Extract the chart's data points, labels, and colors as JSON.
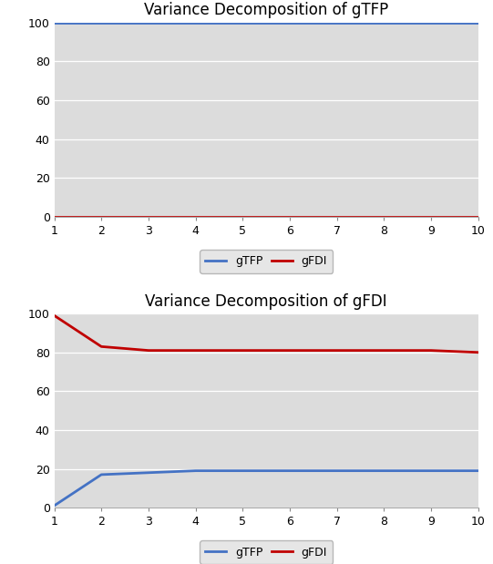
{
  "title1": "Variance Decomposition of gTFP",
  "title2": "Variance Decomposition of gFDI",
  "x": [
    1,
    2,
    3,
    4,
    5,
    6,
    7,
    8,
    9,
    10
  ],
  "gTFP_gtfp": [
    100,
    100,
    100,
    100,
    100,
    100,
    100,
    100,
    100,
    100
  ],
  "gFDI_gtfp": [
    0,
    0,
    0,
    0,
    0,
    0,
    0,
    0,
    0,
    0
  ],
  "gTFP_gfdi": [
    1,
    17,
    18,
    19,
    19,
    19,
    19,
    19,
    19,
    19
  ],
  "gFDI_gfdi": [
    99,
    83,
    81,
    81,
    81,
    81,
    81,
    81,
    81,
    80
  ],
  "blue_color": "#4472C4",
  "red_color": "#C00000",
  "bg_color": "#DCDCDC",
  "fig_bg": "#FFFFFF",
  "legend_bg": "#E0E0E0",
  "legend_edge": "#AAAAAA",
  "ylim": [
    0,
    100
  ],
  "xlim": [
    1,
    10
  ],
  "xticks": [
    1,
    2,
    3,
    4,
    5,
    6,
    7,
    8,
    9,
    10
  ],
  "yticks": [
    0,
    20,
    40,
    60,
    80,
    100
  ],
  "line_width": 2.0,
  "title_fontsize": 12,
  "tick_fontsize": 9,
  "legend_fontsize": 9,
  "figsize": [
    5.41,
    6.19
  ],
  "dpi": 100
}
